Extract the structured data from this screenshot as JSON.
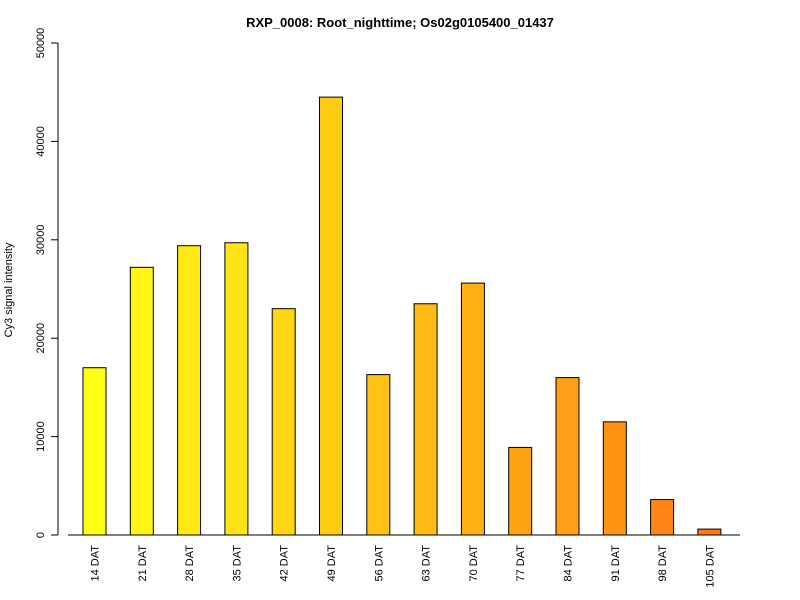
{
  "chart_data": {
    "type": "bar",
    "title": "RXP_0008: Root_nighttime; Os02g0105400_01437",
    "xlabel": "",
    "ylabel": "Cy3 signal intensity",
    "ylim": [
      0,
      50000
    ],
    "yticks": [
      0,
      10000,
      20000,
      30000,
      40000,
      50000
    ],
    "categories": [
      "14 DAT",
      "21 DAT",
      "28 DAT",
      "35 DAT",
      "42 DAT",
      "49 DAT",
      "56 DAT",
      "63 DAT",
      "70 DAT",
      "77 DAT",
      "84 DAT",
      "91 DAT",
      "98 DAT",
      "105 DAT"
    ],
    "values": [
      17000,
      27200,
      29400,
      29700,
      23000,
      44500,
      16300,
      23500,
      25600,
      8900,
      16000,
      11500,
      3600,
      600
    ],
    "colors": [
      "#FFFF14",
      "#FFF414",
      "#FFE914",
      "#FFE314",
      "#FFD614",
      "#FFCC14",
      "#FFC114",
      "#FFBA14",
      "#FFB114",
      "#FFA314",
      "#FF9F14",
      "#FF9314",
      "#FF8514",
      "#FF7A14"
    ],
    "bar_border_color": "#000000",
    "grid": false,
    "legend": "none"
  }
}
